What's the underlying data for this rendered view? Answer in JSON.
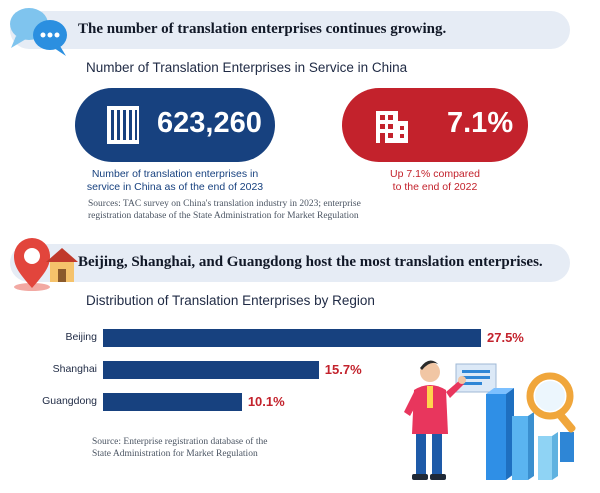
{
  "section1": {
    "banner": "The number of translation enterprises continues growing.",
    "title": "Number of Translation Enterprises in Service in China",
    "stat_total": {
      "value": "623,260",
      "caption_line1": "Number of translation enterprises in",
      "caption_line2": "service in China as of the end of 2023"
    },
    "stat_growth": {
      "value": "7.1%",
      "caption_line1": "Up 7.1% compared",
      "caption_line2": "to the end of 2022"
    },
    "source_line1": "Sources: TAC survey on China's translation industry in 2023; enterprise",
    "source_line2": "registration database of the State Administration for Market Regulation"
  },
  "section2": {
    "banner": "Beijing, Shanghai, and Guangdong host the most translation enterprises.",
    "title": "Distribution of Translation Enterprises by Region",
    "source_line1": "Source: Enterprise registration database of the",
    "source_line2": "State Administration for Market Regulation"
  },
  "chart_data": {
    "type": "bar",
    "orientation": "horizontal",
    "title": "Distribution of Translation Enterprises by Region",
    "categories": [
      "Beijing",
      "Shanghai",
      "Guangdong"
    ],
    "values": [
      27.5,
      15.7,
      10.1
    ],
    "value_labels": [
      "27.5%",
      "15.7%",
      "10.1%"
    ],
    "xlim": [
      0,
      27.5
    ]
  },
  "colors": {
    "navy": "#17417f",
    "red": "#c3222c",
    "banner": "#e6ecf5"
  },
  "icons": [
    "chat-bubbles-icon",
    "building-icon",
    "map-pin-house-icon",
    "presenter-illustration"
  ]
}
